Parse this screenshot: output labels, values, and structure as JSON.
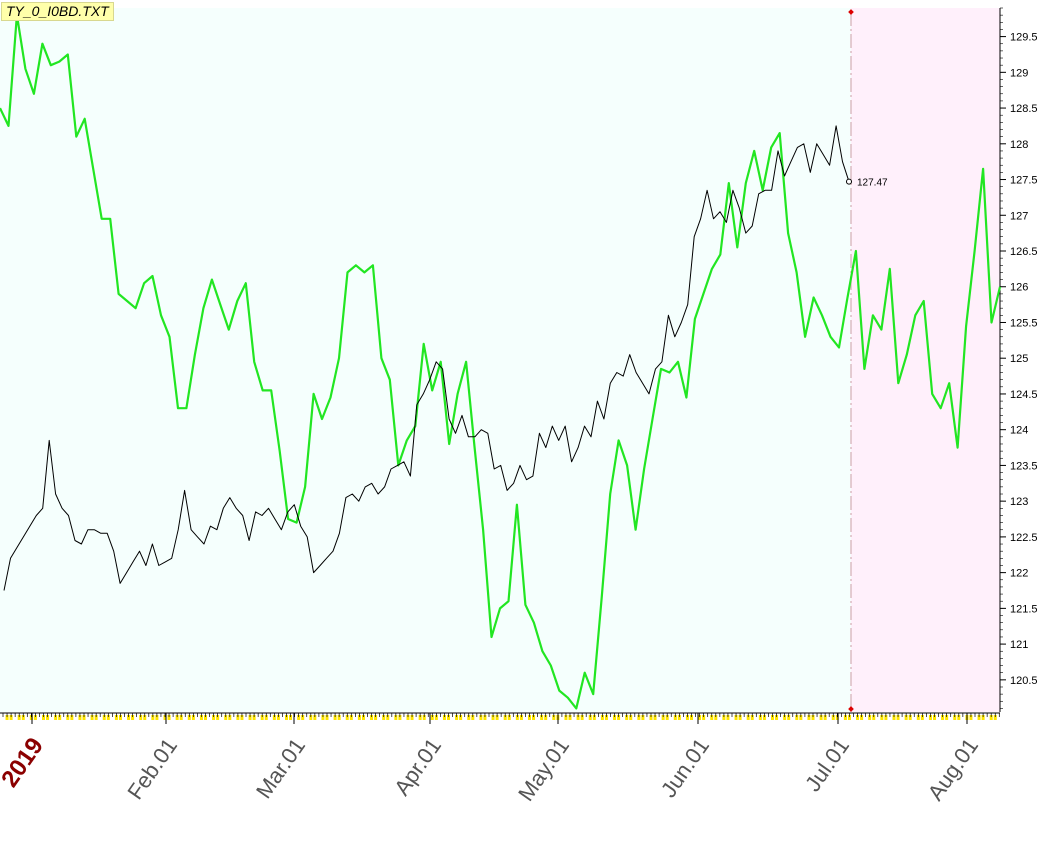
{
  "title": "TY_0_I0BD.TXT",
  "colors": {
    "history_background": "#f5fffd",
    "forecast_background": "#fff0fb",
    "price_line": "#000000",
    "forecast_line": "#22e622",
    "divider": "#d9b8bf",
    "divider_marker": "#dd0000",
    "year_label": "#8b0000",
    "month_label": "#555555",
    "tick_yellow": "#ffe600"
  },
  "chart_data": {
    "type": "line",
    "title": "TY_0_I0BD.TXT",
    "x_axis": {
      "year_label": "2019",
      "month_labels": [
        "Feb.01",
        "Mar.01",
        "Apr.01",
        "May.01",
        "Jun.01",
        "Jul.01",
        "Aug.01"
      ]
    },
    "y_axis": {
      "side": "right",
      "ylim": [
        120.05,
        129.9
      ],
      "ticks": [
        120.5,
        121,
        121.5,
        122,
        122.5,
        123,
        123.5,
        124,
        124.5,
        125,
        125.5,
        126,
        126.5,
        127,
        127.5,
        128,
        128.5,
        129,
        129.5
      ],
      "tick_labels": [
        "120.5",
        "121",
        "121.5",
        "122",
        "122.5",
        "123",
        "123.5",
        "124",
        "124.5",
        "125",
        "125.5",
        "126",
        "126.5",
        "127",
        "127.5",
        "128",
        "128.5",
        "129",
        "129.5"
      ]
    },
    "last_price": {
      "label": "127.47",
      "value": 127.47
    },
    "series": [
      {
        "role": "price",
        "values": [
          121.75,
          122.2,
          122.35,
          122.5,
          122.65,
          122.8,
          122.9,
          123.85,
          123.1,
          122.9,
          122.8,
          122.45,
          122.4,
          122.6,
          122.6,
          122.55,
          122.55,
          122.3,
          121.85,
          122.0,
          122.15,
          122.3,
          122.1,
          122.4,
          122.1,
          122.15,
          122.2,
          122.6,
          123.15,
          122.6,
          122.5,
          122.4,
          122.65,
          122.6,
          122.9,
          123.05,
          122.9,
          122.8,
          122.45,
          122.85,
          122.8,
          122.9,
          122.75,
          122.6,
          122.85,
          122.95,
          122.65,
          122.5,
          122.0,
          122.1,
          122.2,
          122.3,
          122.55,
          123.05,
          123.1,
          123.0,
          123.2,
          123.25,
          123.1,
          123.2,
          123.45,
          123.5,
          123.55,
          123.35,
          124.35,
          124.5,
          124.7,
          124.95,
          124.85,
          124.15,
          123.95,
          124.2,
          123.9,
          123.9,
          124.0,
          123.95,
          123.45,
          123.5,
          123.15,
          123.25,
          123.5,
          123.3,
          123.35,
          123.95,
          123.75,
          124.05,
          123.85,
          124.05,
          123.55,
          123.75,
          124.05,
          123.9,
          124.4,
          124.15,
          124.65,
          124.8,
          124.75,
          125.05,
          124.8,
          124.65,
          124.5,
          124.85,
          124.95,
          125.6,
          125.3,
          125.5,
          125.75,
          126.7,
          126.95,
          127.35,
          126.95,
          127.05,
          126.9,
          127.35,
          127.1,
          126.75,
          126.85,
          127.3,
          127.35,
          127.35,
          127.9,
          127.55,
          127.75,
          127.95,
          128.0,
          127.6,
          128.0,
          127.85,
          127.7,
          128.25,
          127.75,
          127.47
        ],
        "style": "thin-black"
      },
      {
        "role": "forecast",
        "values": [
          128.5,
          128.25,
          129.8,
          129.05,
          128.7,
          129.4,
          129.1,
          129.15,
          129.25,
          128.1,
          128.35,
          127.65,
          126.95,
          126.95,
          125.9,
          125.8,
          125.7,
          126.05,
          126.15,
          125.6,
          125.3,
          124.3,
          124.3,
          125.05,
          125.7,
          126.1,
          125.75,
          125.4,
          125.8,
          126.05,
          124.95,
          124.55,
          124.55,
          123.7,
          122.75,
          122.7,
          123.2,
          124.5,
          124.15,
          124.45,
          125.0,
          126.2,
          126.3,
          126.2,
          126.3,
          125.0,
          124.7,
          123.5,
          123.85,
          124.05,
          125.2,
          124.55,
          124.95,
          123.8,
          124.5,
          124.95,
          123.75,
          122.6,
          121.1,
          121.5,
          121.6,
          122.95,
          121.55,
          121.3,
          120.9,
          120.7,
          120.35,
          120.25,
          120.1,
          120.6,
          120.3,
          121.65,
          123.1,
          123.85,
          123.5,
          122.6,
          123.45,
          124.15,
          124.85,
          124.8,
          124.95,
          124.45,
          125.55,
          125.9,
          126.25,
          126.45,
          127.45,
          126.55,
          127.45,
          127.9,
          127.35,
          127.95,
          128.15,
          126.75,
          126.2,
          125.3,
          125.85,
          125.6,
          125.3,
          125.15,
          125.85,
          126.5,
          124.85,
          125.6,
          125.4,
          126.25,
          124.65,
          125.05,
          125.6,
          125.8,
          124.5,
          124.3,
          124.65,
          123.75,
          125.45,
          126.5,
          127.65,
          125.5,
          126.0
        ],
        "style": "thick-green"
      }
    ]
  }
}
